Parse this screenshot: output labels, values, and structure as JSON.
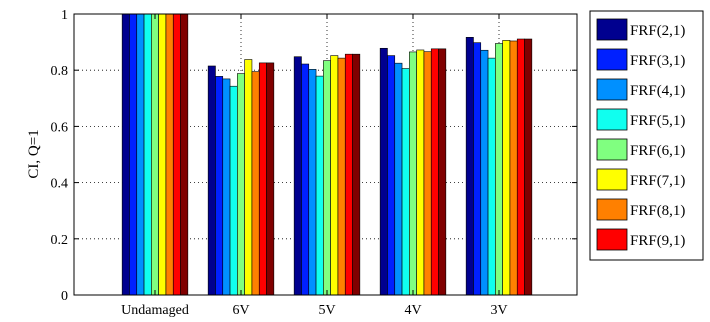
{
  "chart_data": {
    "type": "bar",
    "ylabel": "CI, Q=1",
    "ylim": [
      0,
      1
    ],
    "yticks": [
      "0",
      "0.2",
      "0.4",
      "0.6",
      "0.8",
      "1"
    ],
    "grid": true,
    "legend_position": "outside-right",
    "categories": [
      "Undamaged",
      "6V",
      "5V",
      "4V",
      "3V"
    ],
    "series": [
      {
        "name": "FRF(2,1)",
        "color": "#00008f",
        "values": [
          1.0,
          0.815,
          0.848,
          0.878,
          0.917
        ]
      },
      {
        "name": "FRF(3,1)",
        "color": "#0020ff",
        "values": [
          1.0,
          0.778,
          0.822,
          0.852,
          0.898
        ]
      },
      {
        "name": "FRF(4,1)",
        "color": "#0090ff",
        "values": [
          1.0,
          0.769,
          0.803,
          0.825,
          0.871
        ]
      },
      {
        "name": "FRF(5,1)",
        "color": "#10ffef",
        "values": [
          1.0,
          0.743,
          0.779,
          0.806,
          0.843
        ]
      },
      {
        "name": "FRF(6,1)",
        "color": "#80ff80",
        "values": [
          1.0,
          0.788,
          0.834,
          0.865,
          0.895
        ]
      },
      {
        "name": "FRF(7,1)",
        "color": "#ffff00",
        "values": [
          1.0,
          0.838,
          0.852,
          0.872,
          0.906
        ]
      },
      {
        "name": "FRF(8,1)",
        "color": "#ff8000",
        "values": [
          1.0,
          0.795,
          0.843,
          0.866,
          0.904
        ]
      },
      {
        "name": "FRF(9,1)",
        "color": "#ff0000",
        "values": [
          1.0,
          0.826,
          0.857,
          0.876,
          0.911
        ]
      },
      {
        "name": "",
        "color": "#800000",
        "values": [
          1.0,
          0.826,
          0.857,
          0.876,
          0.911
        ]
      }
    ]
  }
}
